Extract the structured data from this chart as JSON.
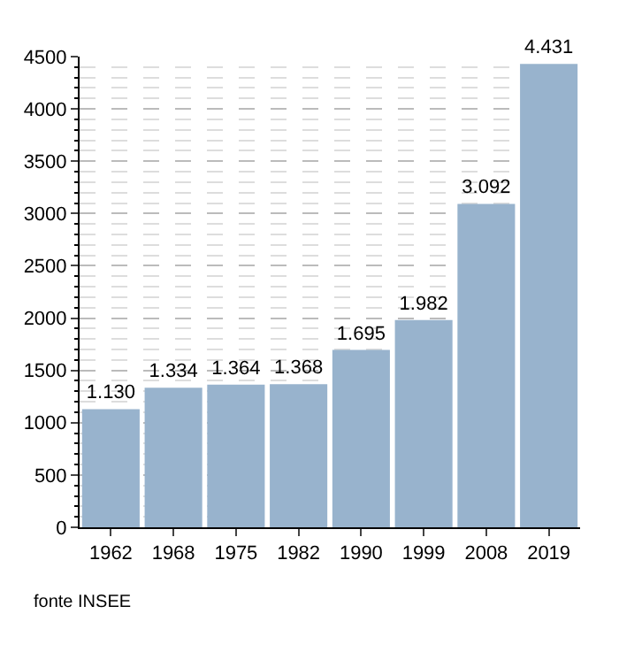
{
  "chart_data": {
    "type": "bar",
    "categories": [
      "1962",
      "1968",
      "1975",
      "1982",
      "1990",
      "1999",
      "2008",
      "2019"
    ],
    "values": [
      1130,
      1334,
      1364,
      1368,
      1695,
      1982,
      3092,
      4431
    ],
    "value_labels": [
      "1.130",
      "1.334",
      "1.364",
      "1.368",
      "1.695",
      "1.982",
      "3.092",
      "4.431"
    ],
    "color": "#98b3cd",
    "ylim": [
      0,
      4500
    ],
    "yticks": [
      0,
      500,
      1000,
      1500,
      2000,
      2500,
      3000,
      3500,
      4000,
      4500
    ],
    "grid": true,
    "annotations": [
      "fonte INSEE"
    ]
  }
}
